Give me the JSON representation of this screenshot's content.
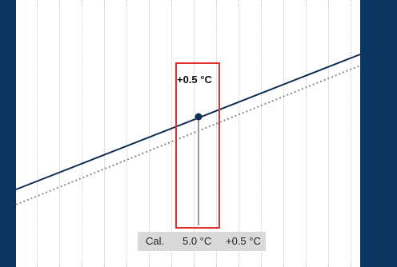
{
  "highlight": {
    "offset_value": "+0.5 °C"
  },
  "calibration": {
    "label": "Cal.",
    "reference_value": "5.0 °C",
    "offset_value": "+0.5 °C"
  },
  "colors": {
    "background": "#0a3560",
    "panel": "#ffffff",
    "calibrated_line": "#0d2e52",
    "reference_line": "#8a8a8a",
    "highlight_border": "#e03030",
    "bar_bg": "#d9d9d9"
  }
}
